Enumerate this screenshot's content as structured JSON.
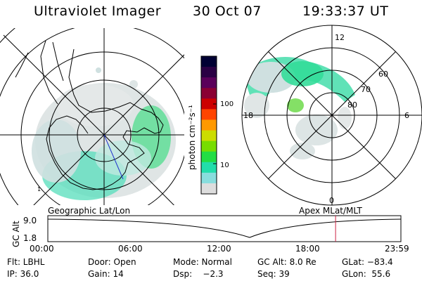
{
  "header": {
    "title": "Ultraviolet Imager",
    "date": "30 Oct 07",
    "time": "19:33:37 UT"
  },
  "colorbar": {
    "unit_label": "photon cm⁻²s⁻¹",
    "ticks": [
      "100",
      "10"
    ],
    "colors": [
      "#000033",
      "#2a0044",
      "#5a005a",
      "#8a0033",
      "#cc0000",
      "#ff4400",
      "#ff9900",
      "#ccdd00",
      "#77dd00",
      "#22dd44",
      "#22ddaa",
      "#88dddd",
      "#dddddd"
    ]
  },
  "left_panel": {
    "label": "Geographic Lat/Lon",
    "marker": "1"
  },
  "right_panel": {
    "label": "Apex  MLat/MLT",
    "mlt_labels": {
      "top": "12",
      "left": "18",
      "right": "6",
      "bottom": "0"
    },
    "lat_labels": [
      "60",
      "70",
      "80"
    ]
  },
  "timeline": {
    "ylabel": "GC Alt",
    "y_ticks": [
      "9.0",
      "1.8"
    ],
    "x_ticks": [
      "00:00",
      "06:00",
      "12:00",
      "18:00",
      "23:59"
    ],
    "current_time_fraction": 0.815
  },
  "info": {
    "row1": [
      "Flt: LBHL",
      "Door: Open",
      "Mode: Normal",
      "GC Alt: 8.0 Re",
      "GLat: −83.4"
    ],
    "row2": [
      "IP: 36.0",
      "Gain: 14",
      "Dsp:    −2.3",
      "Seq: 39",
      "GLon:  55.6"
    ]
  }
}
